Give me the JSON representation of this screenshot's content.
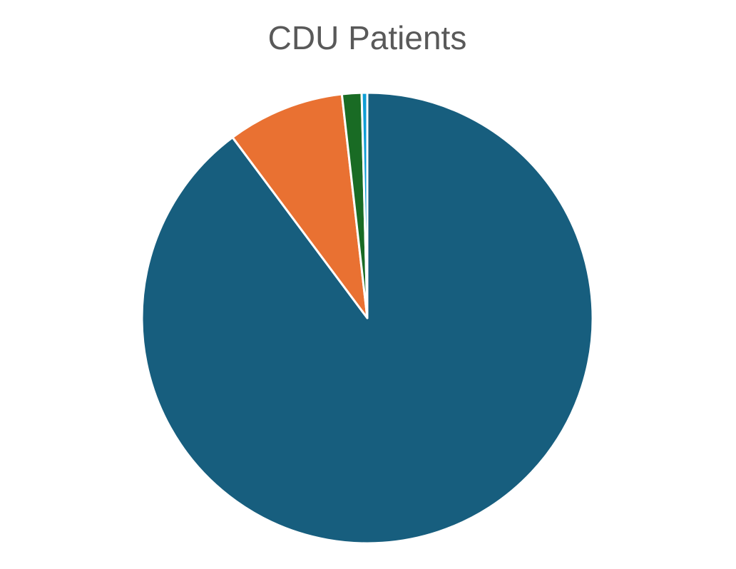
{
  "chart_data": {
    "type": "pie",
    "title": "CDU Patients",
    "values": [
      89.8,
      8.4,
      1.4,
      0.4
    ],
    "colors": [
      "#175e7e",
      "#e97132",
      "#196b24",
      "#0f9ed5"
    ]
  }
}
